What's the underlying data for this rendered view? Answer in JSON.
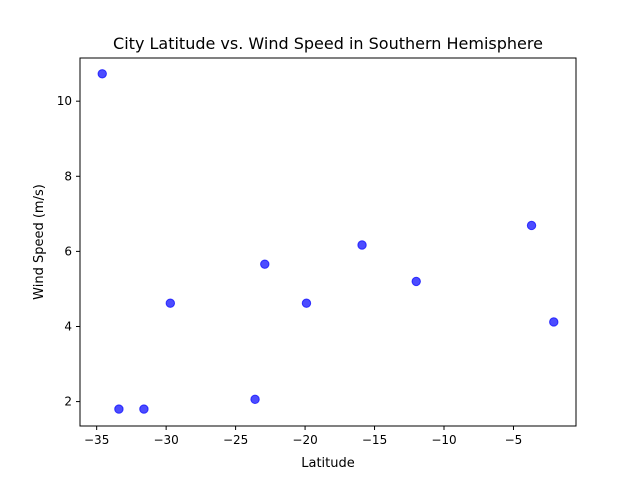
{
  "chart_data": {
    "type": "scatter",
    "title": "City Latitude vs. Wind Speed in Southern Hemisphere",
    "xlabel": "Latitude",
    "ylabel": "Wind Speed (m/s)",
    "xlim": [
      -36.2,
      -0.5
    ],
    "ylim": [
      1.35,
      11.15
    ],
    "xticks": [
      -35,
      -30,
      -25,
      -20,
      -15,
      -10,
      -5
    ],
    "xtick_labels": [
      "−35",
      "−30",
      "−25",
      "−20",
      "−15",
      "−10",
      "−5"
    ],
    "yticks": [
      2,
      4,
      6,
      8,
      10
    ],
    "ytick_labels": [
      "2",
      "4",
      "6",
      "8",
      "10"
    ],
    "grid": false,
    "marker_color": "#0000ff",
    "marker_alpha": 0.7,
    "points": [
      {
        "x": -34.6,
        "y": 10.73
      },
      {
        "x": -33.4,
        "y": 1.8
      },
      {
        "x": -31.6,
        "y": 1.8
      },
      {
        "x": -29.7,
        "y": 4.62
      },
      {
        "x": -23.6,
        "y": 2.06
      },
      {
        "x": -22.9,
        "y": 5.66
      },
      {
        "x": -19.9,
        "y": 4.62
      },
      {
        "x": -15.9,
        "y": 6.17
      },
      {
        "x": -12.0,
        "y": 5.2
      },
      {
        "x": -3.7,
        "y": 6.69
      },
      {
        "x": -2.1,
        "y": 4.12
      }
    ]
  }
}
